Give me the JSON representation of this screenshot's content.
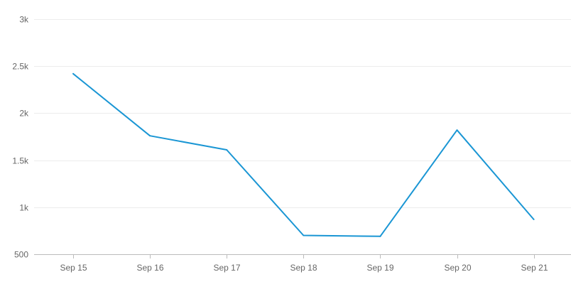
{
  "chart_data": {
    "type": "line",
    "title": "",
    "xlabel": "",
    "ylabel": "",
    "categories": [
      "Sep 15",
      "Sep 16",
      "Sep 17",
      "Sep 18",
      "Sep 19",
      "Sep 20",
      "Sep 21"
    ],
    "series": [
      {
        "values": [
          2420,
          1760,
          1610,
          700,
          690,
          1820,
          870
        ],
        "color": "#1a96d4"
      }
    ],
    "ylim": [
      500,
      3000
    ],
    "yticks": [
      500,
      1000,
      1500,
      2000,
      2500,
      3000
    ],
    "ytick_labels": [
      "500",
      "1k",
      "1.5k",
      "2k",
      "2.5k",
      "3k"
    ],
    "grid": true,
    "legend": "none"
  }
}
